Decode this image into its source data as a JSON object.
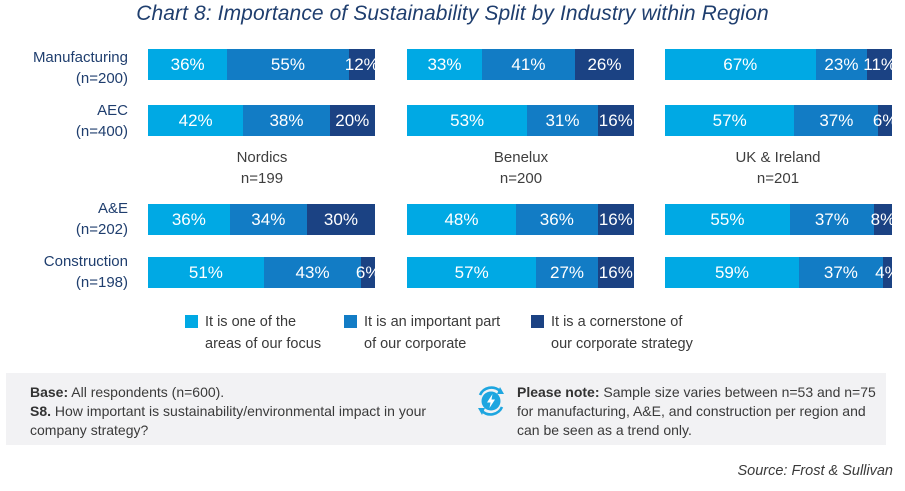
{
  "title": "Chart 8: Importance of Sustainability Split by Industry within Region",
  "colors": {
    "s1": "#00a9e4",
    "s2": "#127cc5",
    "s3": "#1b4283"
  },
  "chart_data": {
    "type": "bar",
    "orientation": "horizontal",
    "stacked": true,
    "title": "Chart 8: Importance of Sustainability Split by Industry within Region",
    "unit": "%",
    "legend_position": "bottom",
    "series_names": [
      "It is one of the areas of our focus",
      "It is an important part of our corporate",
      "It is a cornerstone of our corporate strategy"
    ],
    "regions": [
      {
        "name": "Nordics",
        "n": "n=199"
      },
      {
        "name": "Benelux",
        "n": "n=200"
      },
      {
        "name": "UK & Ireland",
        "n": "n=201"
      }
    ],
    "industries": [
      {
        "name": "Manufacturing",
        "n": "(n=200)"
      },
      {
        "name": "AEC",
        "n": "(n=400)"
      },
      {
        "name": "A&E",
        "n": "(n=202)"
      },
      {
        "name": "Construction",
        "n": "(n=198)"
      }
    ],
    "values": {
      "Manufacturing": {
        "Nordics": [
          36,
          55,
          12
        ],
        "Benelux": [
          33,
          41,
          26
        ],
        "UK & Ireland": [
          67,
          23,
          11
        ]
      },
      "AEC": {
        "Nordics": [
          42,
          38,
          20
        ],
        "Benelux": [
          53,
          31,
          16
        ],
        "UK & Ireland": [
          57,
          37,
          6
        ]
      },
      "A&E": {
        "Nordics": [
          36,
          34,
          30
        ],
        "Benelux": [
          48,
          36,
          16
        ],
        "UK & Ireland": [
          55,
          37,
          8
        ]
      },
      "Construction": {
        "Nordics": [
          51,
          43,
          6
        ],
        "Benelux": [
          57,
          27,
          16
        ],
        "UK & Ireland": [
          59,
          37,
          4
        ]
      }
    }
  },
  "rows": [
    {
      "label": "Manufacturing",
      "n": "(n=200)"
    },
    {
      "label": "AEC",
      "n": "(n=400)"
    },
    {
      "label": "A&E",
      "n": "(n=202)"
    },
    {
      "label": "Construction",
      "n": "(n=198)"
    }
  ],
  "region_labels": [
    {
      "name": "Nordics",
      "n": "n=199"
    },
    {
      "name": "Benelux",
      "n": "n=200"
    },
    {
      "name": "UK & Ireland",
      "n": "n=201"
    }
  ],
  "legend": [
    {
      "line1": "It is one of the",
      "line2": "areas of our focus"
    },
    {
      "line1": "It is an important part",
      "line2": "of our corporate"
    },
    {
      "line1": "It is a cornerstone of",
      "line2": "our corporate strategy"
    }
  ],
  "notes": {
    "base_label": "Base:",
    "base_text": "All respondents (n=600).",
    "question_label": "S8.",
    "question_text": "How important is sustainability/environmental impact in your company strategy?",
    "please_note_label": "Please note:",
    "please_note_text": "Sample size varies between n=53 and n=75 for manufacturing, A&E, and construction per region and can be seen as a trend only.",
    "icon": "lightning-refresh-icon"
  },
  "source": "Source: Frost & Sullivan"
}
